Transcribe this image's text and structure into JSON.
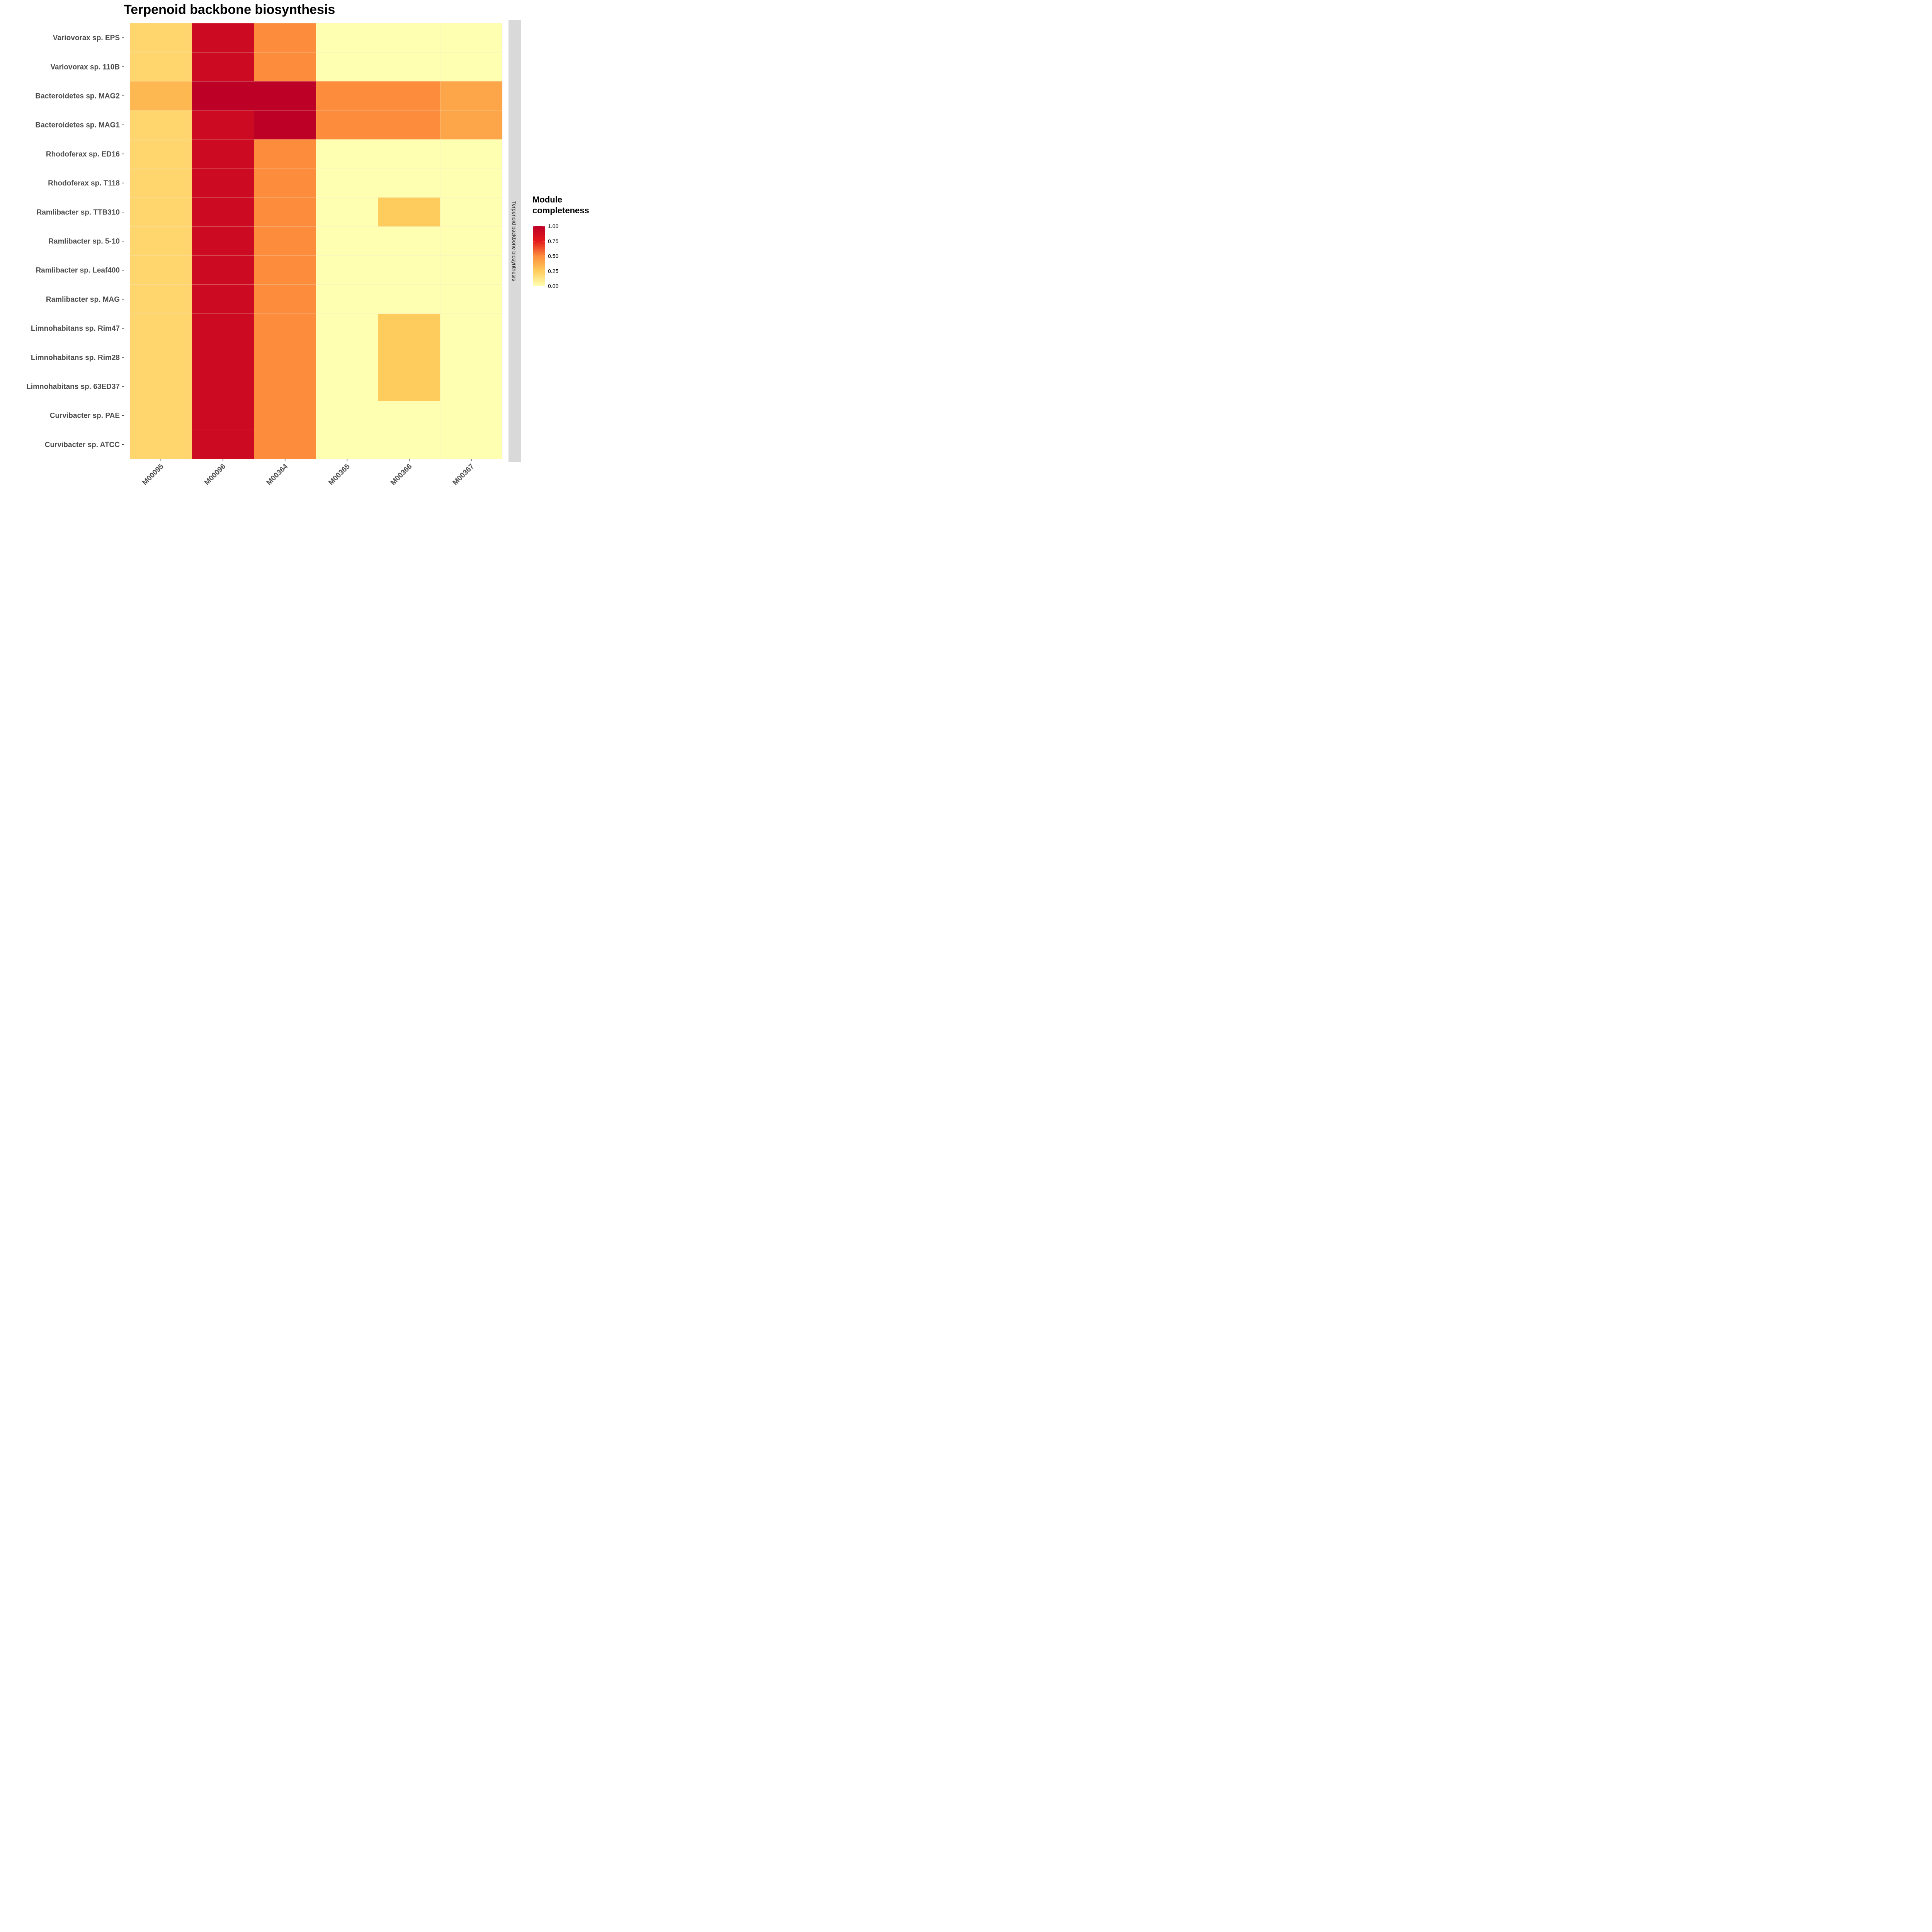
{
  "chart_data": {
    "type": "heatmap",
    "title": "Terpenoid backbone biosynthesis",
    "facet_label": "Terpenoid backbone biosynthesis",
    "legend": {
      "title_line1": "Module",
      "title_line2": "completeness",
      "ticks": [
        "1.00",
        "0.75",
        "0.50",
        "0.25",
        "0.00"
      ],
      "placement": "right"
    },
    "x_categories": [
      "M00095",
      "M00096",
      "M00364",
      "M00365",
      "M00366",
      "M00367"
    ],
    "y_categories": [
      "Variovorax sp. EPS",
      "Variovorax sp. 110B",
      "Bacteroidetes sp. MAG2",
      "Bacteroidetes sp. MAG1",
      "Rhodoferax sp. ED16",
      "Rhodoferax sp. T118",
      "Ramlibacter sp. TTB310",
      "Ramlibacter sp. 5-10",
      "Ramlibacter sp. Leaf400",
      "Ramlibacter sp. MAG",
      "Limnohabitans sp. Rim47",
      "Limnohabitans sp. Rim28",
      "Limnohabitans sp. 63ED37",
      "Curvibacter sp. PAE",
      "Curvibacter sp. ATCC"
    ],
    "values": [
      [
        0.2,
        0.9,
        0.5,
        0.0,
        0.0,
        0.0
      ],
      [
        0.2,
        0.9,
        0.5,
        0.0,
        0.0,
        0.0
      ],
      [
        0.33,
        1.0,
        1.0,
        0.5,
        0.5,
        0.4
      ],
      [
        0.2,
        0.9,
        1.0,
        0.5,
        0.5,
        0.4
      ],
      [
        0.2,
        0.9,
        0.5,
        0.0,
        0.0,
        0.0
      ],
      [
        0.2,
        0.9,
        0.5,
        0.0,
        0.0,
        0.0
      ],
      [
        0.2,
        0.9,
        0.5,
        0.0,
        0.25,
        0.0
      ],
      [
        0.2,
        0.9,
        0.5,
        0.0,
        0.0,
        0.0
      ],
      [
        0.2,
        0.9,
        0.5,
        0.0,
        0.0,
        0.0
      ],
      [
        0.2,
        0.9,
        0.5,
        0.0,
        0.0,
        0.0
      ],
      [
        0.2,
        0.9,
        0.5,
        0.0,
        0.25,
        0.0
      ],
      [
        0.2,
        0.9,
        0.5,
        0.0,
        0.25,
        0.0
      ],
      [
        0.2,
        0.9,
        0.5,
        0.0,
        0.25,
        0.0
      ],
      [
        0.2,
        0.9,
        0.5,
        0.0,
        0.0,
        0.0
      ],
      [
        0.2,
        0.9,
        0.5,
        0.0,
        0.0,
        0.0
      ]
    ],
    "color_scale": {
      "domain": [
        0,
        1
      ],
      "stops": [
        "#ffffb2",
        "#fecc5c",
        "#fd8d3c",
        "#e31a1c",
        "#bd0026"
      ]
    },
    "grid": false
  }
}
